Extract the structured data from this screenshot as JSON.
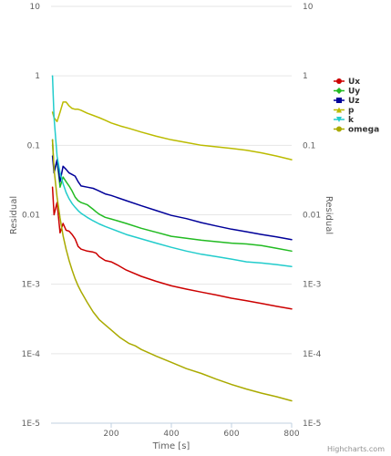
{
  "chart_data": {
    "type": "line",
    "xlabel": "Time [s]",
    "ylabel": "Residual",
    "y_scale": "log",
    "xlim": [
      0,
      800
    ],
    "ylim": [
      1e-05,
      10
    ],
    "x_ticks": [
      200,
      400,
      600,
      800
    ],
    "y_ticks": [
      10,
      1,
      0.1,
      0.01,
      0.001,
      0.0001,
      1e-05
    ],
    "y_tick_labels": [
      "10",
      "1",
      "0.1",
      "0.01",
      "1E-3",
      "1E-4",
      "1E-5"
    ],
    "grid": "horizontal",
    "legend_position": "right",
    "series": [
      {
        "name": "Ux",
        "color": "#cc0000",
        "marker": "circle",
        "x": [
          5,
          10,
          20,
          30,
          40,
          50,
          60,
          70,
          80,
          90,
          100,
          120,
          140,
          150,
          160,
          180,
          200,
          220,
          250,
          300,
          350,
          400,
          450,
          500,
          550,
          600,
          650,
          700,
          750,
          800
        ],
        "y": [
          0.025,
          0.01,
          0.015,
          0.0055,
          0.0075,
          0.006,
          0.0058,
          0.0052,
          0.0045,
          0.0035,
          0.0032,
          0.003,
          0.0029,
          0.0028,
          0.0025,
          0.0022,
          0.0021,
          0.0019,
          0.0016,
          0.0013,
          0.0011,
          0.00095,
          0.00085,
          0.00077,
          0.0007,
          0.00063,
          0.00058,
          0.00053,
          0.00048,
          0.00044
        ]
      },
      {
        "name": "Uy",
        "color": "#22bb22",
        "marker": "diamond",
        "x": [
          5,
          10,
          20,
          30,
          40,
          50,
          60,
          70,
          80,
          90,
          100,
          120,
          140,
          150,
          160,
          180,
          200,
          250,
          300,
          350,
          400,
          450,
          500,
          550,
          600,
          650,
          700,
          750,
          800
        ],
        "y": [
          0.12,
          0.04,
          0.06,
          0.025,
          0.035,
          0.03,
          0.026,
          0.022,
          0.018,
          0.016,
          0.015,
          0.014,
          0.012,
          0.011,
          0.0102,
          0.0092,
          0.0087,
          0.0075,
          0.0064,
          0.0056,
          0.0049,
          0.0046,
          0.0043,
          0.0041,
          0.0039,
          0.0038,
          0.0036,
          0.0033,
          0.003
        ]
      },
      {
        "name": "Uz",
        "color": "#000099",
        "marker": "square",
        "x": [
          5,
          10,
          20,
          30,
          40,
          50,
          60,
          70,
          80,
          90,
          100,
          120,
          140,
          150,
          160,
          180,
          200,
          250,
          300,
          350,
          400,
          450,
          500,
          550,
          600,
          650,
          700,
          750,
          800
        ],
        "y": [
          0.07,
          0.04,
          0.062,
          0.03,
          0.05,
          0.045,
          0.04,
          0.038,
          0.036,
          0.03,
          0.026,
          0.025,
          0.024,
          0.023,
          0.022,
          0.02,
          0.019,
          0.016,
          0.0135,
          0.0115,
          0.0098,
          0.0088,
          0.0077,
          0.0069,
          0.0062,
          0.0057,
          0.0052,
          0.0048,
          0.0044
        ]
      },
      {
        "name": "p",
        "color": "#bbbb00",
        "marker": "triangle",
        "x": [
          5,
          10,
          20,
          30,
          40,
          50,
          60,
          70,
          80,
          90,
          100,
          120,
          140,
          160,
          180,
          200,
          230,
          260,
          280,
          300,
          350,
          400,
          450,
          500,
          550,
          600,
          650,
          700,
          750,
          800
        ],
        "y": [
          0.3,
          0.25,
          0.22,
          0.3,
          0.42,
          0.42,
          0.37,
          0.34,
          0.33,
          0.33,
          0.32,
          0.29,
          0.27,
          0.25,
          0.23,
          0.21,
          0.19,
          0.175,
          0.165,
          0.155,
          0.135,
          0.12,
          0.11,
          0.1,
          0.095,
          0.09,
          0.085,
          0.078,
          0.07,
          0.062
        ]
      },
      {
        "name": "k",
        "color": "#22cccc",
        "marker": "triangle-down",
        "x": [
          5,
          10,
          20,
          30,
          40,
          50,
          60,
          70,
          80,
          90,
          100,
          120,
          140,
          160,
          180,
          200,
          250,
          300,
          350,
          400,
          450,
          500,
          550,
          600,
          650,
          700,
          750,
          800
        ],
        "y": [
          1,
          0.25,
          0.07,
          0.04,
          0.028,
          0.021,
          0.017,
          0.0145,
          0.0128,
          0.0115,
          0.0105,
          0.0092,
          0.0082,
          0.0074,
          0.0068,
          0.0063,
          0.0052,
          0.0045,
          0.0039,
          0.0034,
          0.003,
          0.0027,
          0.0025,
          0.0023,
          0.0021,
          0.00202,
          0.00192,
          0.0018
        ]
      },
      {
        "name": "omega",
        "color": "#aaaa00",
        "marker": "circle",
        "x": [
          5,
          10,
          20,
          30,
          40,
          50,
          60,
          70,
          80,
          90,
          100,
          120,
          140,
          160,
          180,
          200,
          230,
          260,
          280,
          300,
          350,
          400,
          450,
          500,
          550,
          600,
          650,
          700,
          750,
          800
        ],
        "y": [
          0.12,
          0.045,
          0.018,
          0.009,
          0.005,
          0.0032,
          0.0022,
          0.0016,
          0.0012,
          0.00095,
          0.00078,
          0.00055,
          0.0004,
          0.00031,
          0.00026,
          0.00022,
          0.00017,
          0.00014,
          0.00013,
          0.000115,
          9.2e-05,
          7.5e-05,
          6.1e-05,
          5.2e-05,
          4.3e-05,
          3.6e-05,
          3.1e-05,
          2.7e-05,
          2.4e-05,
          2.1e-05
        ]
      }
    ],
    "credits": "Highcharts.com"
  }
}
